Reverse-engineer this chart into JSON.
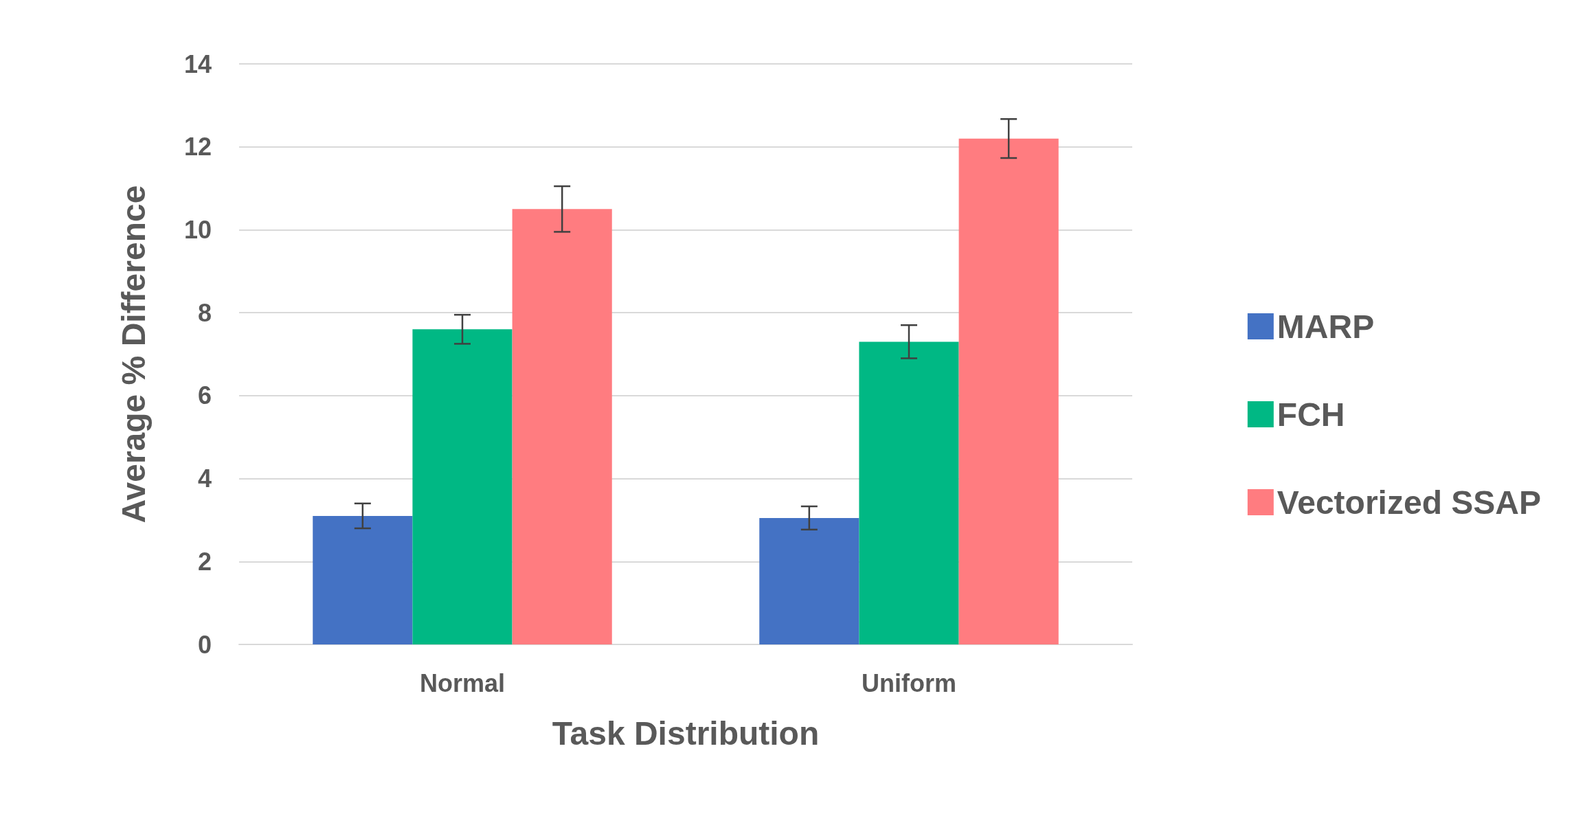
{
  "chart_data": {
    "type": "bar",
    "xlabel": "Task Distribution",
    "ylabel": "Average % Difference",
    "categories": [
      "Normal",
      "Uniform"
    ],
    "series": [
      {
        "name": "MARP",
        "color": "#4472c4",
        "values": [
          3.1,
          3.05
        ],
        "errors": [
          0.3,
          0.28
        ]
      },
      {
        "name": "FCH",
        "color": "#00b884",
        "values": [
          7.6,
          7.3
        ],
        "errors": [
          0.35,
          0.4
        ]
      },
      {
        "name": "Vectorized SSAP",
        "color": "#ff7c80",
        "values": [
          10.5,
          12.2
        ],
        "errors": [
          0.55,
          0.47
        ]
      }
    ],
    "ylim": [
      0,
      14
    ],
    "yticks": [
      0,
      2,
      4,
      6,
      8,
      10,
      12,
      14
    ],
    "grid": "y",
    "legend": "right"
  }
}
